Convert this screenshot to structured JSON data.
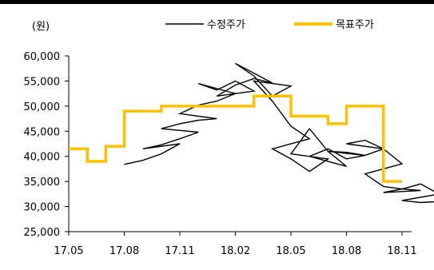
{
  "chart_data": {
    "type": "line",
    "ylabel": "(원)",
    "ylim": [
      25000,
      60000
    ],
    "yticks": [
      25000,
      30000,
      35000,
      40000,
      45000,
      50000,
      55000,
      60000
    ],
    "ytick_labels": [
      "25,000",
      "30,000",
      "35,000",
      "40,000",
      "45,000",
      "50,000",
      "55,000",
      "60,000"
    ],
    "xticks": [
      "17.05",
      "17.08",
      "17.11",
      "18.02",
      "18.05",
      "18.08",
      "18.11"
    ],
    "series": [
      {
        "name": "수정주가",
        "color": "#000000",
        "points": [
          [
            "17.08",
            38400
          ],
          [
            "17.0825",
            39200
          ],
          [
            "17.085",
            40500
          ],
          [
            "17.0875",
            42500
          ],
          [
            "17.09",
            41500
          ],
          [
            "17.0925",
            42300
          ],
          [
            "17.095",
            43500
          ],
          [
            "17.0975",
            44800
          ],
          [
            "17.10",
            45500
          ],
          [
            "17.1025",
            46500
          ],
          [
            "17.105",
            47200
          ],
          [
            "17.1075",
            47500
          ],
          [
            "17.11",
            48500
          ],
          [
            "17.1125",
            50200
          ],
          [
            "17.115",
            51000
          ],
          [
            "17.1175",
            52500
          ],
          [
            "17.12",
            54500
          ],
          [
            "17.1225",
            53200
          ],
          [
            "17.125",
            55000
          ],
          [
            "17.1275",
            53000
          ],
          [
            "18.01",
            52000
          ],
          [
            "18.0125",
            54200
          ],
          [
            "18.015",
            55500
          ],
          [
            "18.0175",
            54600
          ],
          [
            "18.02",
            58500
          ],
          [
            "18.0225",
            56000
          ],
          [
            "18.025",
            52000
          ],
          [
            "18.0275",
            54000
          ],
          [
            "18.03",
            55000
          ],
          [
            "18.0325",
            51000
          ],
          [
            "18.035",
            46000
          ],
          [
            "18.0375",
            43500
          ],
          [
            "18.04",
            41500
          ],
          [
            "18.0425",
            39500
          ],
          [
            "18.045",
            37000
          ],
          [
            "18.0475",
            39500
          ],
          [
            "18.05",
            40500
          ],
          [
            "18.0525",
            45500
          ],
          [
            "18.055",
            41000
          ],
          [
            "18.0575",
            38000
          ],
          [
            "18.06",
            40000
          ],
          [
            "18.0625",
            41500
          ],
          [
            "18.065",
            39500
          ],
          [
            "18.0675",
            40200
          ],
          [
            "18.07",
            41000
          ],
          [
            "18.0725",
            40800
          ],
          [
            "18.075",
            40200
          ],
          [
            "18.0775",
            41500
          ],
          [
            "18.08",
            42500
          ],
          [
            "18.0825",
            43200
          ],
          [
            "18.085",
            41500
          ],
          [
            "18.0875",
            38500
          ],
          [
            "18.09",
            36500
          ],
          [
            "18.0925",
            34000
          ],
          [
            "18.095",
            33500
          ],
          [
            "18.0975",
            33200
          ],
          [
            "18.10",
            32800
          ],
          [
            "18.1025",
            33500
          ],
          [
            "18.105",
            34500
          ],
          [
            "18.1075",
            32500
          ],
          [
            "18.11",
            31200
          ],
          [
            "18.1125",
            30800
          ],
          [
            "18.115",
            31000
          ],
          [
            "18.1175",
            32000
          ]
        ]
      },
      {
        "name": "목표주가",
        "color": "#FFC000",
        "points": [
          [
            "17.05",
            41500
          ],
          [
            "17.06",
            41500
          ],
          [
            "17.06",
            39000
          ],
          [
            "17.07",
            39000
          ],
          [
            "17.07",
            42000
          ],
          [
            "17.08",
            42000
          ],
          [
            "17.08",
            49000
          ],
          [
            "17.10",
            49000
          ],
          [
            "17.10",
            50000
          ],
          [
            "18.03",
            50000
          ],
          [
            "18.03",
            52000
          ],
          [
            "18.05",
            52000
          ],
          [
            "18.05",
            48000
          ],
          [
            "18.07",
            48000
          ],
          [
            "18.07",
            46500
          ],
          [
            "18.08",
            46500
          ],
          [
            "18.08",
            50000
          ],
          [
            "18.10",
            50000
          ],
          [
            "18.10",
            35000
          ],
          [
            "18.11",
            35000
          ]
        ]
      }
    ]
  }
}
